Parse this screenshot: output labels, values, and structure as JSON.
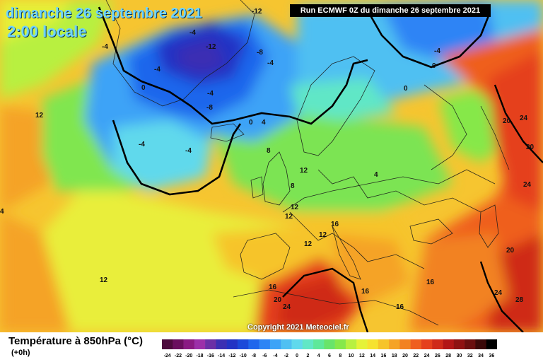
{
  "header": {
    "date": "dimanche 26 septembre 2021",
    "local_time": "2:00 locale",
    "run_info": "Run ECMWF 0Z du dimanche 26 septembre 2021"
  },
  "copyright": "Copyright 2021 Meteociel.fr",
  "footer": {
    "title": "Température à 850hPa (°C)",
    "lead_time": "(+0h)"
  },
  "legend": {
    "labels": [
      "-24",
      "-22",
      "-20",
      "-18",
      "-16",
      "-14",
      "-12",
      "-10",
      "-8",
      "-6",
      "-4",
      "-2",
      "0",
      "2",
      "4",
      "6",
      "8",
      "10",
      "12",
      "14",
      "16",
      "18",
      "20",
      "22",
      "24",
      "26",
      "28",
      "30",
      "32",
      "34",
      "36"
    ],
    "colors": [
      "#4d0b3d",
      "#6a0f5e",
      "#8a1a83",
      "#9c2fa9",
      "#6b2fa6",
      "#3b2fb3",
      "#2233c4",
      "#1b49d9",
      "#1f66ec",
      "#2d84f5",
      "#3ca3f7",
      "#4fc0f2",
      "#60d9ec",
      "#61e7c6",
      "#5ee89a",
      "#68e46a",
      "#86e84a",
      "#b8f040",
      "#e5f238",
      "#f6e230",
      "#f6c42a",
      "#f5a325",
      "#f28222",
      "#ef5f1f",
      "#e5401c",
      "#cf2a19",
      "#b21616",
      "#8f1212",
      "#6a0f0f",
      "#3b0909",
      "#000000"
    ]
  },
  "map": {
    "labels": [
      {
        "text": "-12"
      },
      {
        "text": "-4"
      },
      {
        "text": "-12"
      },
      {
        "text": "-8"
      },
      {
        "text": "-4"
      },
      {
        "text": "-4"
      },
      {
        "text": "-4"
      },
      {
        "text": "-8"
      },
      {
        "text": "0"
      },
      {
        "text": "-4"
      },
      {
        "text": "-4"
      },
      {
        "text": "-4"
      },
      {
        "text": "0"
      },
      {
        "text": "4"
      },
      {
        "text": "-4"
      },
      {
        "text": "0"
      },
      {
        "text": "0"
      },
      {
        "text": "4"
      },
      {
        "text": "12"
      },
      {
        "text": "12"
      },
      {
        "text": "8"
      },
      {
        "text": "12"
      },
      {
        "text": "8"
      },
      {
        "text": "12"
      },
      {
        "text": "16"
      },
      {
        "text": "12"
      },
      {
        "text": "12"
      },
      {
        "text": "4"
      },
      {
        "text": "20"
      },
      {
        "text": "24"
      },
      {
        "text": "20"
      },
      {
        "text": "24"
      },
      {
        "text": "20"
      },
      {
        "text": "24"
      },
      {
        "text": "28"
      },
      {
        "text": "16"
      },
      {
        "text": "16"
      },
      {
        "text": "16"
      },
      {
        "text": "20"
      },
      {
        "text": "24"
      },
      {
        "text": "16"
      },
      {
        "text": "12"
      }
    ]
  }
}
